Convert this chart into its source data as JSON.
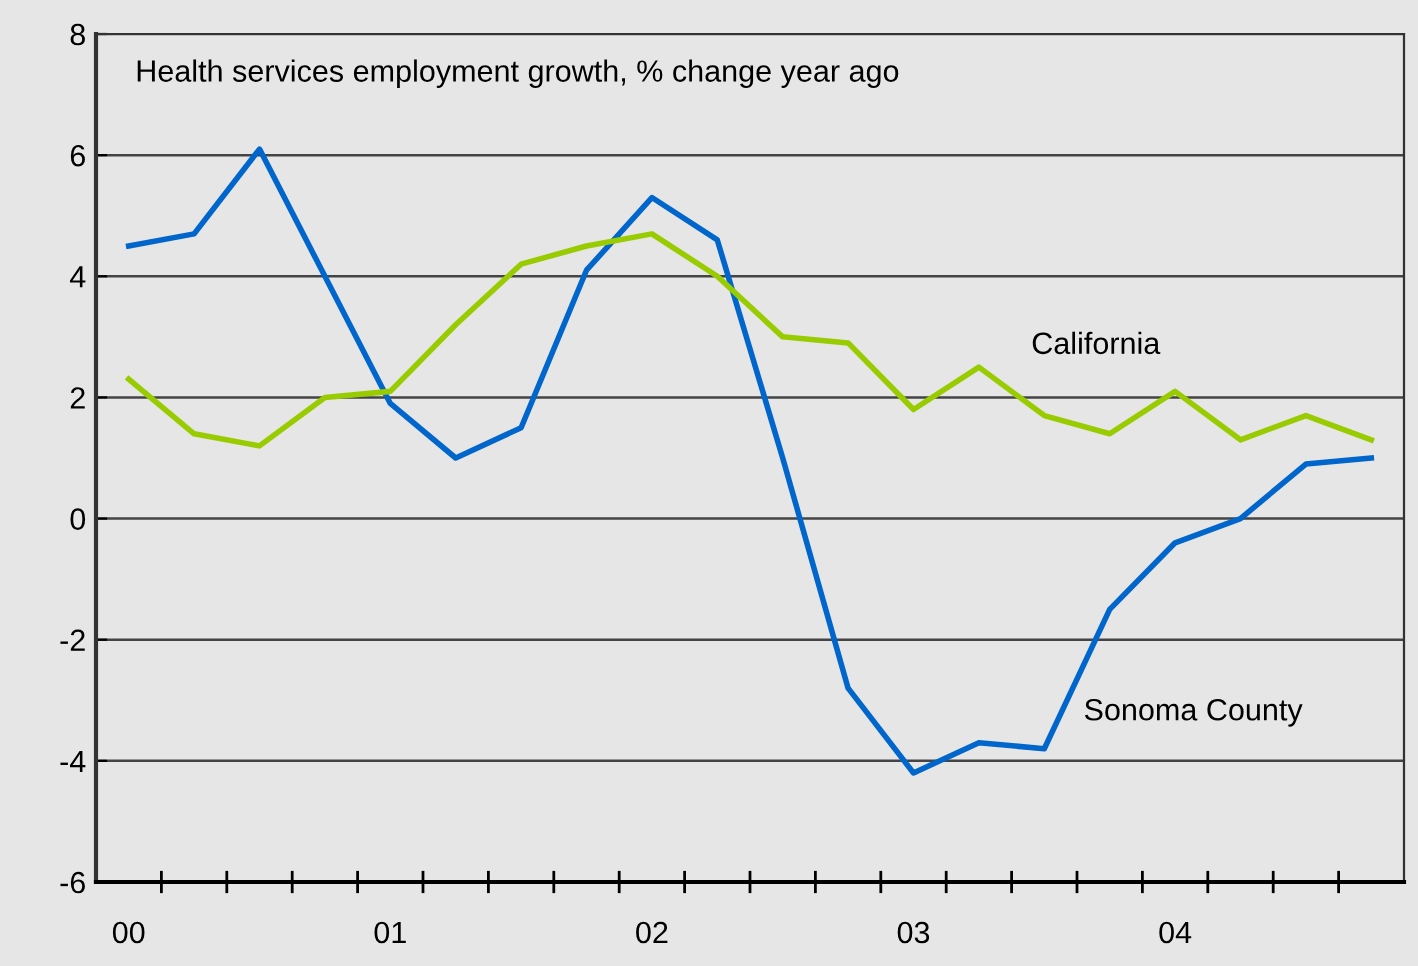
{
  "chart_data": {
    "type": "line",
    "title": "Health services employment growth, % change year ago",
    "categories": [
      "00",
      null,
      null,
      null,
      "01",
      null,
      null,
      null,
      "02",
      null,
      null,
      null,
      "03",
      null,
      null,
      null,
      "04",
      null,
      null,
      null
    ],
    "series": [
      {
        "name": "Sonoma County",
        "color": "#0066cc",
        "values": [
          4.5,
          4.7,
          6.1,
          4.0,
          1.9,
          1.0,
          1.5,
          4.1,
          5.3,
          4.6,
          1.0,
          -2.8,
          -4.2,
          -3.7,
          -3.8,
          -1.5,
          -0.4,
          0.0,
          0.9,
          1.0
        ]
      },
      {
        "name": "California",
        "color": "#99cc00",
        "values": [
          2.3,
          1.4,
          1.2,
          2.0,
          2.1,
          3.2,
          4.2,
          4.5,
          4.7,
          4.0,
          3.0,
          2.9,
          1.8,
          2.5,
          1.7,
          1.4,
          2.1,
          1.3,
          1.7,
          1.3
        ]
      }
    ],
    "ylim": [
      -6,
      8
    ],
    "yticks": [
      -6,
      -4,
      -2,
      0,
      2,
      4,
      6,
      8
    ],
    "grid": "y",
    "legend": false,
    "marker": "none",
    "line_style": "solid"
  }
}
